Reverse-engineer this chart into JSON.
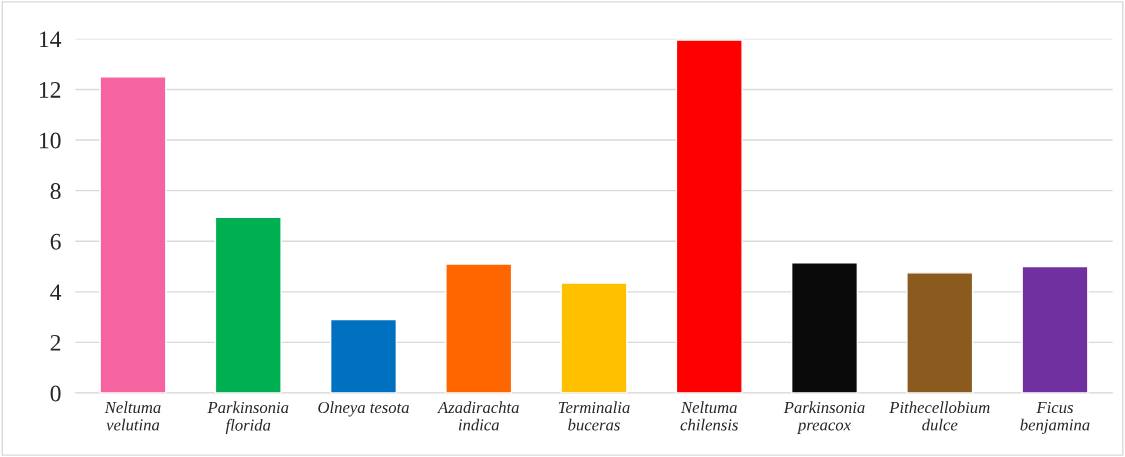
{
  "chart_data": {
    "type": "bar",
    "categories": [
      "Neltuma velutina",
      "Parkinsonia florida",
      "Olneya tesota",
      "Azadirachta indica",
      "Terminalia buceras",
      "Neltuma chilensis",
      "Parkinsonia preacox",
      "Pithecellobium dulce",
      "Ficus benjamina"
    ],
    "values": [
      12.5,
      6.95,
      2.9,
      5.1,
      4.35,
      13.95,
      5.15,
      4.75,
      5.0
    ],
    "colors": [
      "#f564a0",
      "#00b050",
      "#0070c0",
      "#ff6600",
      "#ffc000",
      "#ff0000",
      "#0a0a0a",
      "#8b5a1e",
      "#7030a0"
    ],
    "ylim": [
      0,
      14
    ],
    "yticks": [
      0,
      2,
      4,
      6,
      8,
      10,
      12,
      14
    ],
    "grid": "y",
    "legend": false
  }
}
